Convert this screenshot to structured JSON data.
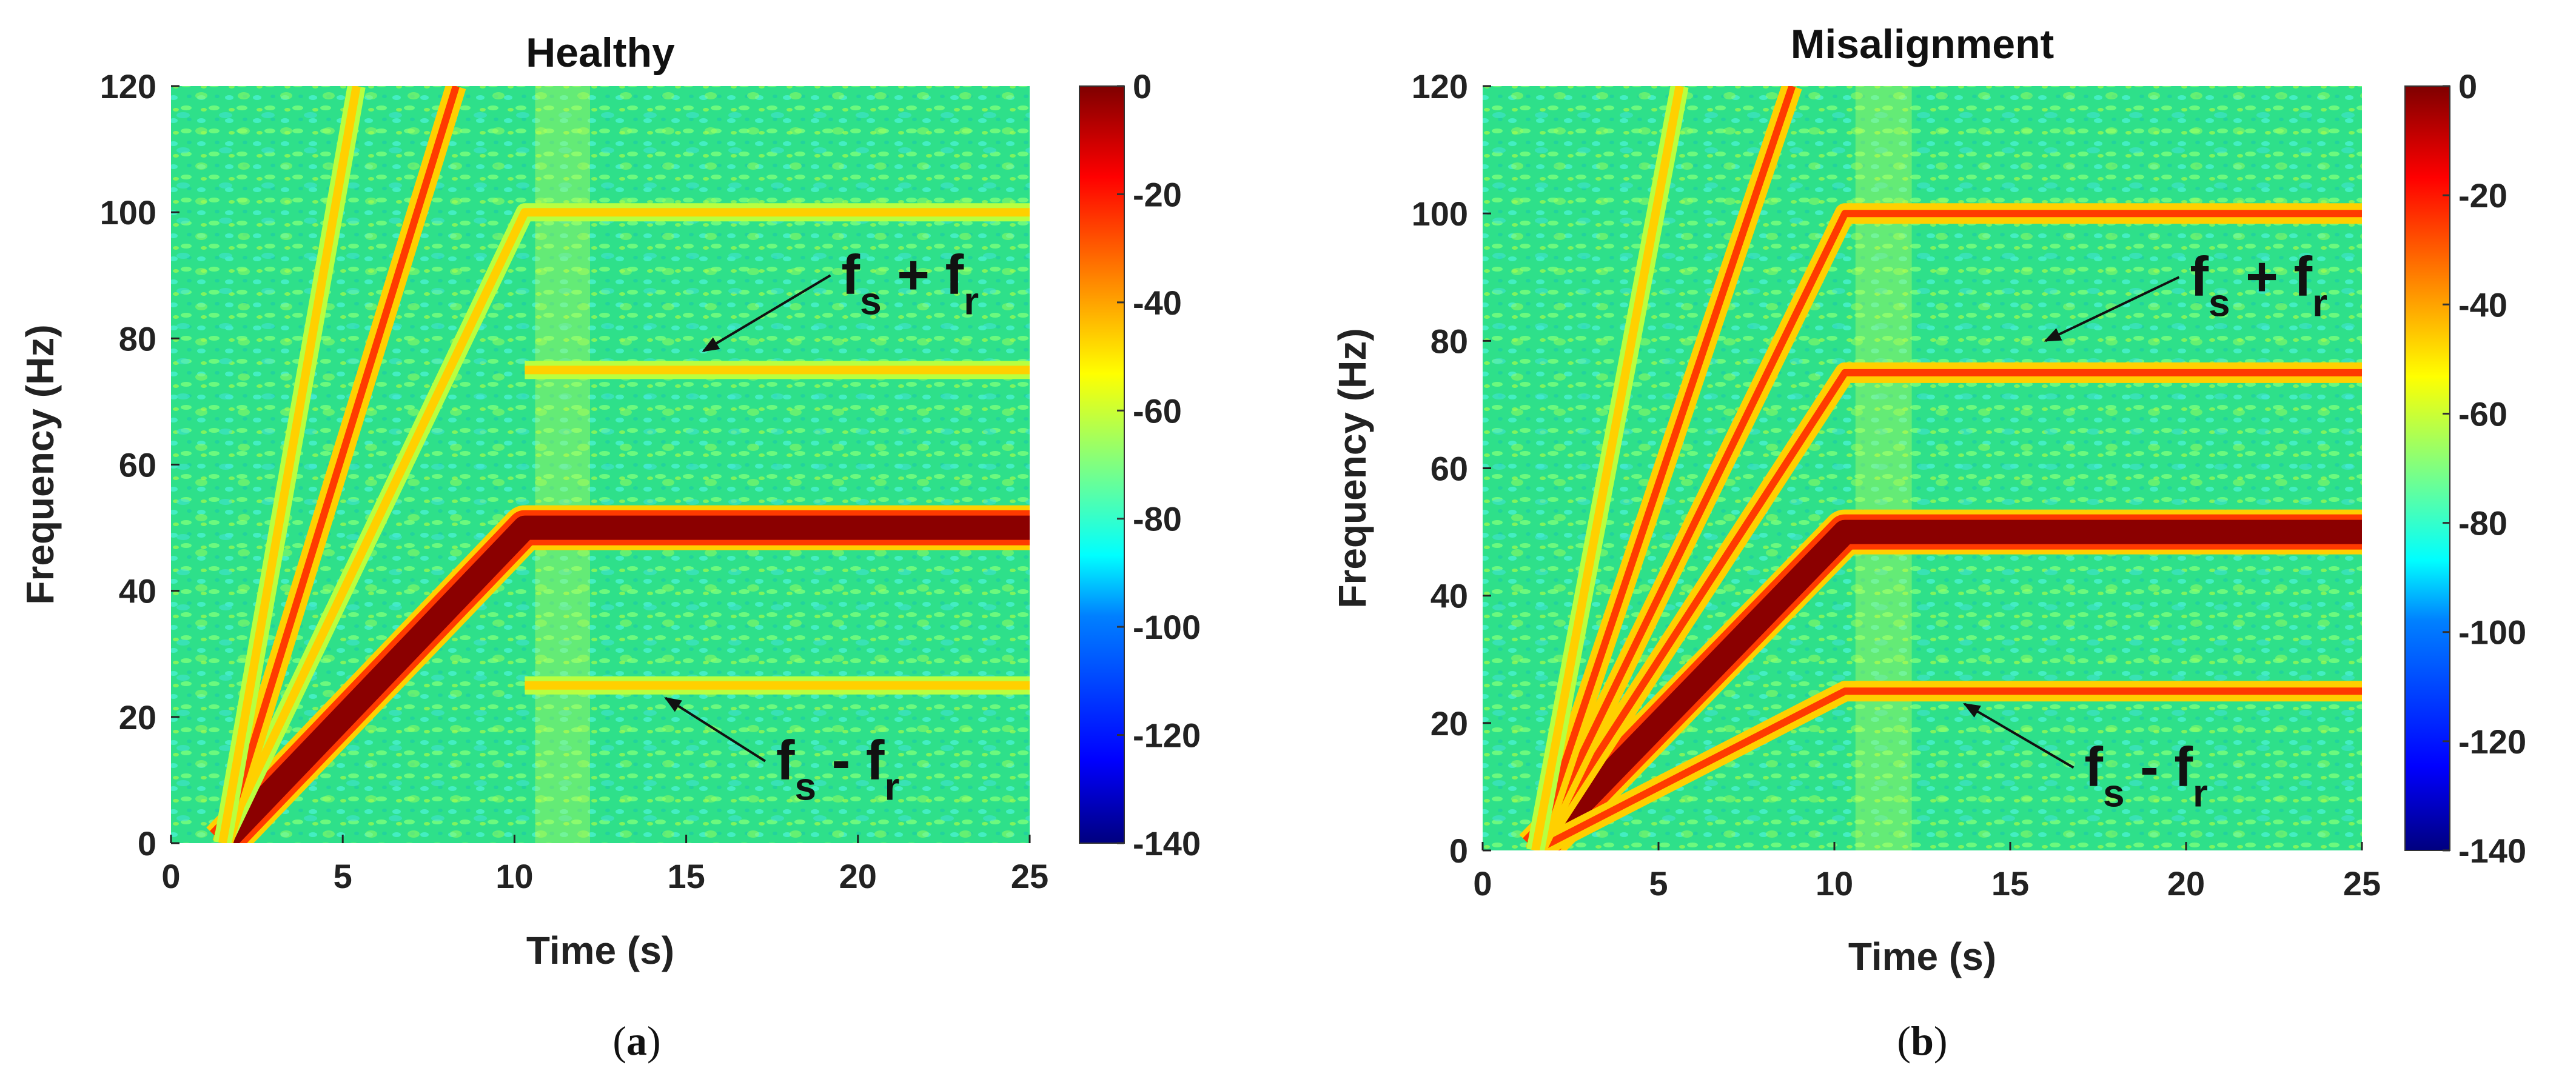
{
  "colors": {
    "colormap": [
      "#00007f",
      "#0000ff",
      "#0080ff",
      "#00ffff",
      "#2ee08a",
      "#80ff80",
      "#ffff00",
      "#ff8000",
      "#ff0000",
      "#7f0000"
    ],
    "background_field": "#2ee08a",
    "ridge_strong": "#8b0000",
    "ridge_mid": "#ff3a00",
    "ridge_faint": "#ffd000",
    "arrow": "#111111",
    "axis": "#222222"
  },
  "chart_data": [
    {
      "type": "heatmap",
      "panel": "a",
      "caption": "(a)",
      "title": "Healthy",
      "xlabel": "Time (s)",
      "ylabel": "Frequency (Hz)",
      "xlim": [
        0,
        25
      ],
      "ylim": [
        0,
        120
      ],
      "xticks": [
        "0",
        "5",
        "10",
        "15",
        "20",
        "25"
      ],
      "yticks": [
        "0",
        "20",
        "40",
        "60",
        "80",
        "100",
        "120"
      ],
      "colorbar": {
        "range": [
          -140,
          0
        ],
        "ticks": [
          "0",
          "-20",
          "-40",
          "-60",
          "-80",
          "-100",
          "-120",
          "-140"
        ]
      },
      "ridges": [
        {
          "name": "supply-frequency",
          "intensity": "strong",
          "points": [
            [
              1.5,
              0
            ],
            [
              10.3,
              50
            ],
            [
              25,
              50
            ]
          ]
        },
        {
          "name": "upper-sideband-fs-plus-fr",
          "intensity": "faint",
          "points": [
            [
              10.3,
              75
            ],
            [
              25,
              75
            ]
          ]
        },
        {
          "name": "lower-sideband-fs-minus-fr",
          "intensity": "faint",
          "points": [
            [
              10.3,
              25
            ],
            [
              25,
              25
            ]
          ]
        },
        {
          "name": "second-harmonic",
          "intensity": "faint",
          "points": [
            [
              1.5,
              0
            ],
            [
              10.3,
              100
            ],
            [
              25,
              100
            ]
          ]
        },
        {
          "name": "steep-component-1",
          "intensity": "mid",
          "points": [
            [
              1.5,
              0
            ],
            [
              8.3,
              120
            ]
          ]
        },
        {
          "name": "steep-component-2",
          "intensity": "faint",
          "points": [
            [
              1.5,
              0
            ],
            [
              5.4,
              120
            ]
          ]
        }
      ],
      "annotations": [
        {
          "id": "fs-plus-fr",
          "main1": "f",
          "sub1": "s",
          "op": " + ",
          "main2": "f",
          "sub2": "r",
          "arrow_from": [
            19.2,
            90
          ],
          "arrow_to": [
            15.5,
            78
          ]
        },
        {
          "id": "fs-minus-fr",
          "main1": "f",
          "sub1": "s",
          "op": " - ",
          "main2": "f",
          "sub2": "r",
          "arrow_from": [
            17.3,
            13
          ],
          "arrow_to": [
            14.4,
            23
          ]
        }
      ]
    },
    {
      "type": "heatmap",
      "panel": "b",
      "caption": "(b)",
      "title": "Misalignment",
      "xlabel": "Time (s)",
      "ylabel": "Frequency (Hz)",
      "xlim": [
        0,
        25
      ],
      "ylim": [
        0,
        120
      ],
      "xticks": [
        "0",
        "5",
        "10",
        "15",
        "20",
        "25"
      ],
      "yticks": [
        "0",
        "20",
        "40",
        "60",
        "80",
        "100",
        "120"
      ],
      "colorbar": {
        "range": [
          -140,
          0
        ],
        "ticks": [
          "0",
          "-20",
          "-40",
          "-60",
          "-80",
          "-100",
          "-120",
          "-140"
        ]
      },
      "ridges": [
        {
          "name": "supply-frequency",
          "intensity": "strong",
          "points": [
            [
              1.5,
              0
            ],
            [
              10.3,
              50
            ],
            [
              25,
              50
            ]
          ]
        },
        {
          "name": "upper-sideband-fs-plus-fr",
          "intensity": "mid",
          "points": [
            [
              1.5,
              0
            ],
            [
              10.3,
              75
            ],
            [
              25,
              75
            ]
          ]
        },
        {
          "name": "lower-sideband-fs-minus-fr",
          "intensity": "mid",
          "points": [
            [
              1.5,
              0
            ],
            [
              10.3,
              25
            ],
            [
              25,
              25
            ]
          ]
        },
        {
          "name": "second-harmonic",
          "intensity": "mid",
          "points": [
            [
              1.5,
              0
            ],
            [
              10.3,
              100
            ],
            [
              25,
              100
            ]
          ]
        },
        {
          "name": "steep-component-1",
          "intensity": "mid",
          "points": [
            [
              1.5,
              0
            ],
            [
              8.8,
              120
            ]
          ]
        },
        {
          "name": "steep-component-2",
          "intensity": "faint",
          "points": [
            [
              1.5,
              0
            ],
            [
              5.6,
              120
            ]
          ]
        }
      ],
      "annotations": [
        {
          "id": "fs-plus-fr",
          "main1": "f",
          "sub1": "s",
          "op": " + ",
          "main2": "f",
          "sub2": "r",
          "arrow_from": [
            19.8,
            90
          ],
          "arrow_to": [
            16.0,
            80
          ]
        },
        {
          "id": "fs-minus-fr",
          "main1": "f",
          "sub1": "s",
          "op": " - ",
          "main2": "f",
          "sub2": "r",
          "arrow_from": [
            16.8,
            13
          ],
          "arrow_to": [
            13.7,
            23
          ]
        }
      ]
    }
  ]
}
